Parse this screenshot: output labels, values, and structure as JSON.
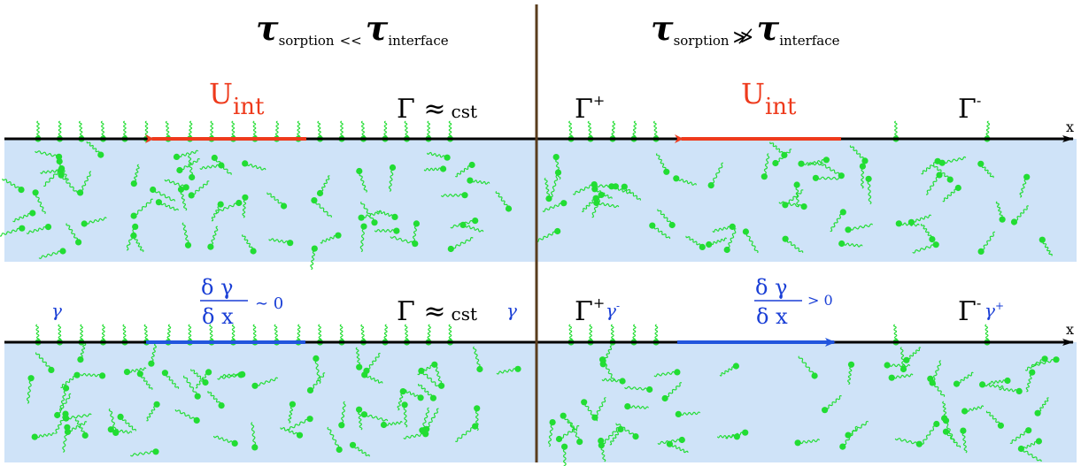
{
  "colors": {
    "water": "#cfe3f8",
    "surfactant": "#22dd33",
    "divider": "#5a3d1e",
    "velocity_arrow": "#ee3a1c",
    "gradient_arrow": "#2255dd",
    "gamma_text": "#1a3fd6",
    "interface": "#000000"
  },
  "axis_label": "x",
  "left_panel": {
    "header": {
      "tau1": "τ",
      "sub1": "sorption",
      "relation": "<<",
      "tau2": "τ",
      "sub2": "interface"
    },
    "top": {
      "velocity_label": "U",
      "velocity_sub": "int",
      "surface_excess": "Γ ≈",
      "surface_excess_value": "cst"
    },
    "bottom": {
      "gamma_left": "γ",
      "gradient_num": "δ γ",
      "gradient_den": "δ x",
      "gradient_rel": "∼ 0",
      "surface_excess": "Γ ≈",
      "surface_excess_value": "cst",
      "gamma_right": "γ"
    }
  },
  "right_panel": {
    "header": {
      "tau1": "τ",
      "sub1": "sorption",
      "relation": "≫̸",
      "tau2": "τ",
      "sub2": "interface"
    },
    "top": {
      "gamma_plus": "Γ",
      "plus": "+",
      "velocity_label": "U",
      "velocity_sub": "int",
      "gamma_minus": "Γ",
      "minus": "-"
    },
    "bottom": {
      "gamma_plus": "Γ",
      "plus": "+",
      "gamma_small_left": "γ",
      "gamma_small_left_sup": "-",
      "gradient_num": "δ γ",
      "gradient_den": "δ x",
      "gradient_rel": "> 0",
      "gamma_minus": "Γ",
      "minus": "-",
      "gamma_small_right": "γ",
      "gamma_small_right_sup": "+"
    }
  }
}
